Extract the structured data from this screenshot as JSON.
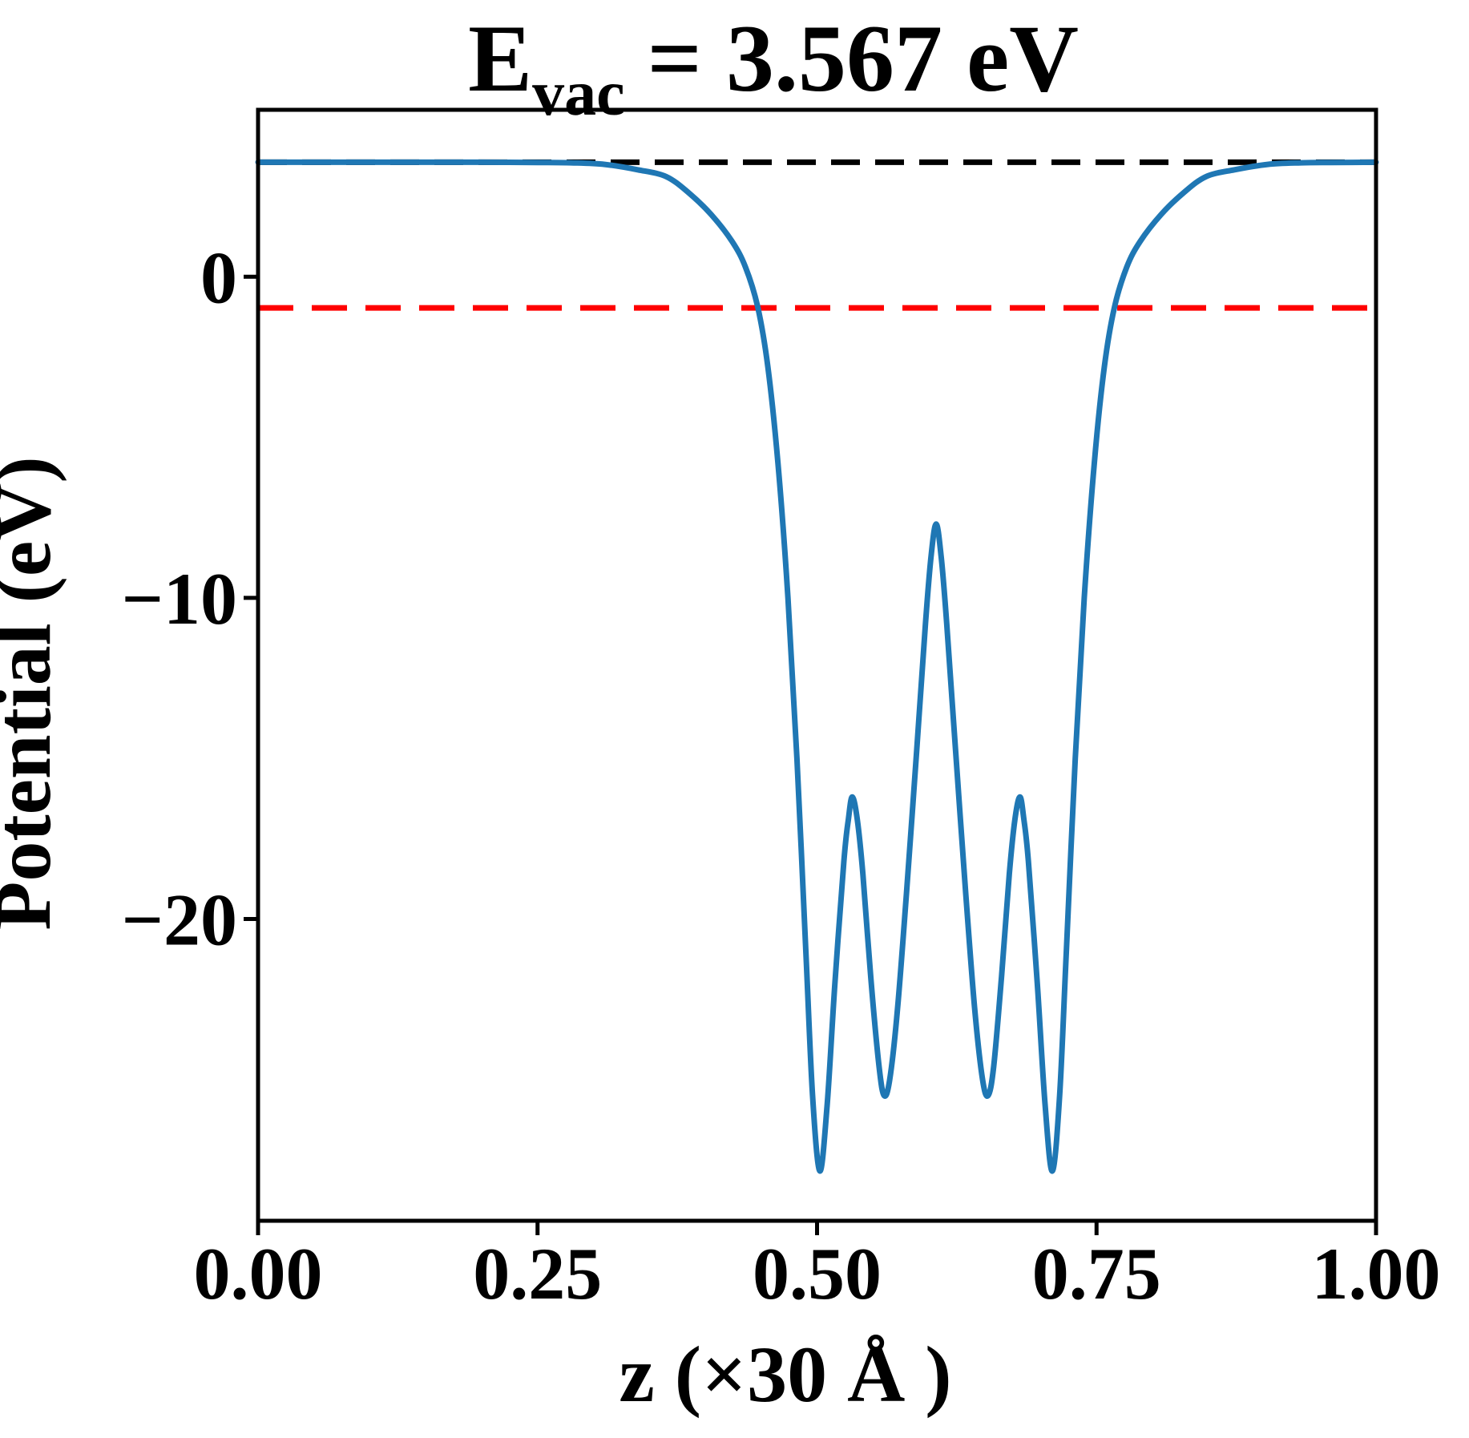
{
  "chart_data": {
    "type": "line",
    "title": {
      "base": "E",
      "sub": "vac",
      "rest": "= 3.567 eV"
    },
    "xlabel": "z (×30 Å )",
    "ylabel": "Potential (eV)",
    "xlim": [
      0.0,
      1.0
    ],
    "ylim": [
      -29.4,
      5.2
    ],
    "grid": false,
    "legend": null,
    "xticks": {
      "values": [
        0.0,
        0.25,
        0.5,
        0.75,
        1.0
      ],
      "labels": [
        "0.00",
        "0.25",
        "0.50",
        "0.75",
        "1.00"
      ]
    },
    "yticks": {
      "values": [
        0,
        -10,
        -20
      ],
      "labels": [
        "0",
        "−10",
        "−20"
      ]
    },
    "evac_ev": 3.567,
    "colors": {
      "potential": "#1f77b4",
      "vacuum_level": "#000000",
      "fermi_level": "#ff0000"
    },
    "series": [
      {
        "name": "planar-averaged-potential",
        "type": "curve",
        "color": "#1f77b4",
        "style": "solid",
        "points": [
          [
            0.0,
            3.567
          ],
          [
            0.05,
            3.567
          ],
          [
            0.1,
            3.567
          ],
          [
            0.15,
            3.567
          ],
          [
            0.2,
            3.567
          ],
          [
            0.25,
            3.56
          ],
          [
            0.28,
            3.55
          ],
          [
            0.31,
            3.5
          ],
          [
            0.34,
            3.33
          ],
          [
            0.365,
            3.12
          ],
          [
            0.385,
            2.62
          ],
          [
            0.405,
            1.95
          ],
          [
            0.424,
            1.1
          ],
          [
            0.436,
            0.3
          ],
          [
            0.447,
            -0.95
          ],
          [
            0.456,
            -2.8
          ],
          [
            0.465,
            -5.8
          ],
          [
            0.474,
            -10.0
          ],
          [
            0.482,
            -15.0
          ],
          [
            0.49,
            -21.0
          ],
          [
            0.496,
            -25.5
          ],
          [
            0.5025,
            -27.85
          ],
          [
            0.509,
            -25.8
          ],
          [
            0.516,
            -22.0
          ],
          [
            0.524,
            -18.2
          ],
          [
            0.528,
            -16.9
          ],
          [
            0.5315,
            -16.2
          ],
          [
            0.536,
            -16.9
          ],
          [
            0.541,
            -18.6
          ],
          [
            0.548,
            -21.8
          ],
          [
            0.5555,
            -24.6
          ],
          [
            0.56,
            -25.5
          ],
          [
            0.565,
            -25.0
          ],
          [
            0.572,
            -22.8
          ],
          [
            0.58,
            -19.2
          ],
          [
            0.589,
            -14.8
          ],
          [
            0.597,
            -10.8
          ],
          [
            0.602,
            -8.7
          ],
          [
            0.6065,
            -7.7
          ],
          [
            0.611,
            -8.7
          ],
          [
            0.616,
            -10.8
          ],
          [
            0.624,
            -14.8
          ],
          [
            0.633,
            -19.2
          ],
          [
            0.641,
            -22.8
          ],
          [
            0.648,
            -25.0
          ],
          [
            0.653,
            -25.5
          ],
          [
            0.658,
            -24.6
          ],
          [
            0.665,
            -21.8
          ],
          [
            0.672,
            -18.6
          ],
          [
            0.677,
            -16.9
          ],
          [
            0.6815,
            -16.2
          ],
          [
            0.685,
            -16.9
          ],
          [
            0.689,
            -18.2
          ],
          [
            0.697,
            -22.0
          ],
          [
            0.704,
            -25.8
          ],
          [
            0.7105,
            -27.85
          ],
          [
            0.717,
            -25.5
          ],
          [
            0.723,
            -21.0
          ],
          [
            0.731,
            -15.0
          ],
          [
            0.739,
            -10.0
          ],
          [
            0.748,
            -5.8
          ],
          [
            0.757,
            -2.8
          ],
          [
            0.766,
            -0.95
          ],
          [
            0.777,
            0.3
          ],
          [
            0.789,
            1.1
          ],
          [
            0.808,
            1.95
          ],
          [
            0.828,
            2.62
          ],
          [
            0.848,
            3.12
          ],
          [
            0.873,
            3.33
          ],
          [
            0.903,
            3.5
          ],
          [
            0.933,
            3.55
          ],
          [
            0.96,
            3.56
          ],
          [
            1.0,
            3.567
          ]
        ]
      },
      {
        "name": "vacuum-level",
        "type": "hline",
        "color": "#000000",
        "style": "dashed",
        "y": 3.567
      },
      {
        "name": "fermi-level",
        "type": "hline",
        "color": "#ff0000",
        "style": "dashed",
        "y": -0.97
      }
    ]
  }
}
